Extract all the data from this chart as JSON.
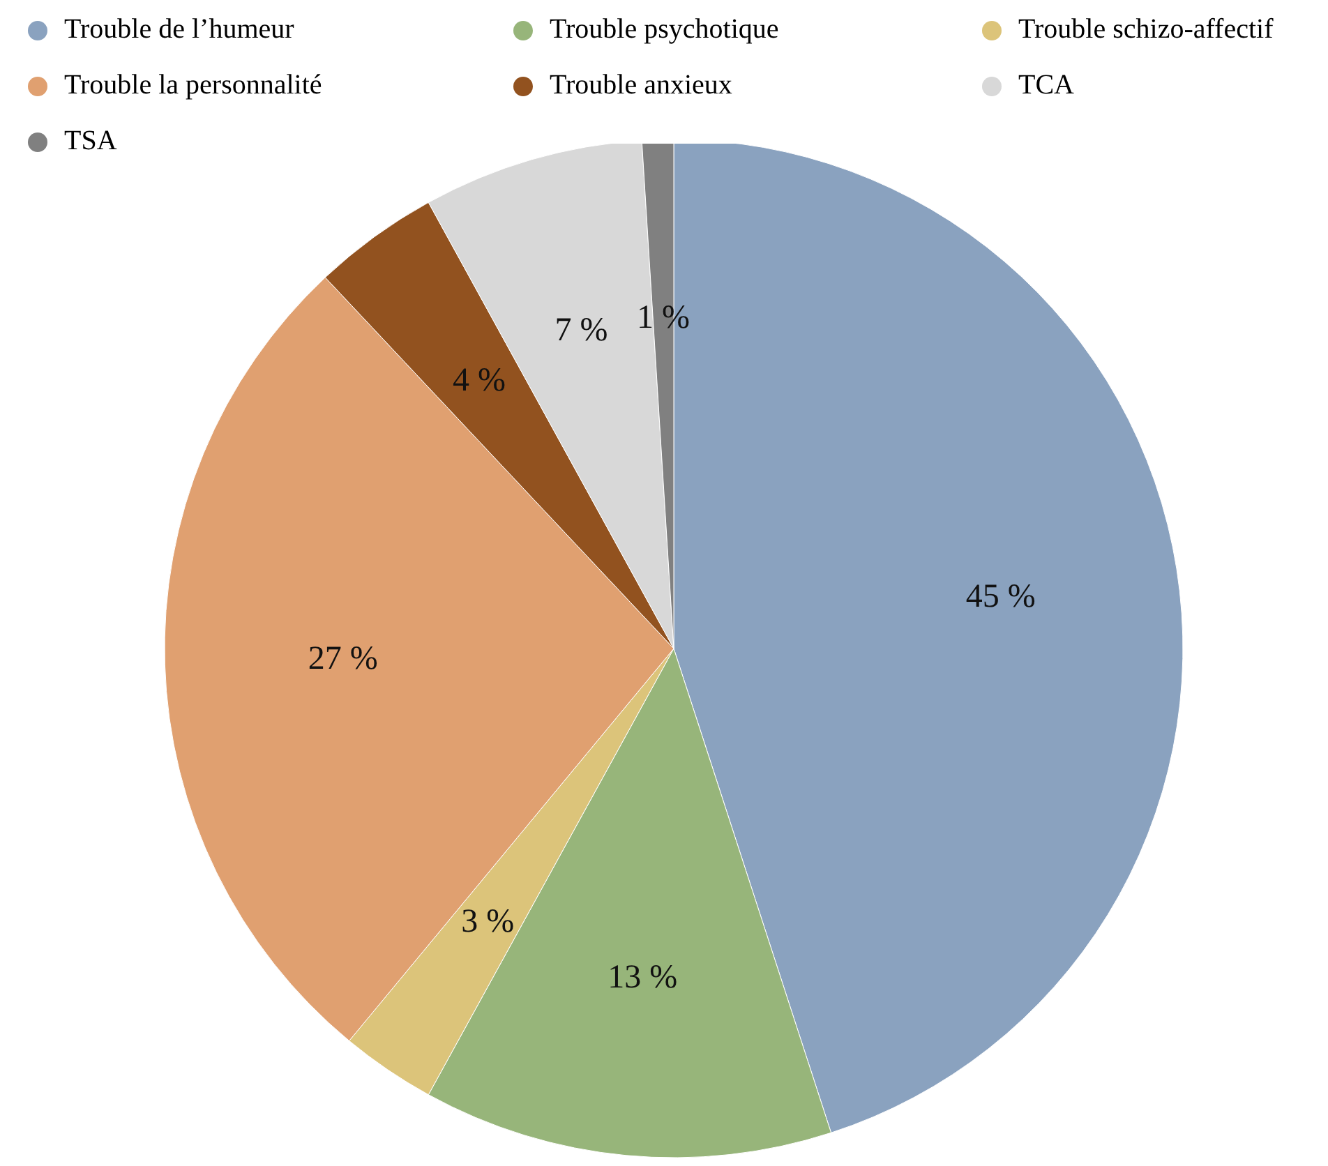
{
  "chart_data": {
    "type": "pie",
    "categories": [
      "Trouble de l’humeur",
      "Trouble psychotique",
      "Trouble schizo-affectif",
      "Trouble la personnalité",
      "Trouble anxieux",
      "TCA",
      "TSA"
    ],
    "values": [
      45,
      13,
      3,
      27,
      4,
      7,
      1
    ],
    "colors": [
      "#8aa2bf",
      "#97b57a",
      "#dcc47a",
      "#e0a070",
      "#92521f",
      "#d8d8d8",
      "#808080"
    ],
    "value_labels": [
      "45 %",
      "13 %",
      "3 %",
      "27 %",
      "4 %",
      "7 %",
      "1 %"
    ],
    "legend": "top"
  }
}
